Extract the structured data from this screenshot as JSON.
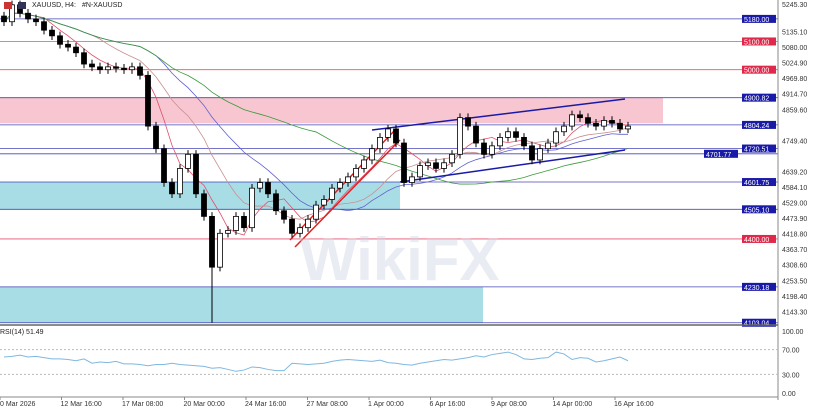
{
  "header": {
    "symbol": "XAUUSD, H4:",
    "description": "#N-XAUUSD"
  },
  "chart_data": {
    "type": "candlestick",
    "symbol": "XAUUSD",
    "timeframe": "H4",
    "ylim": [
      4095,
      5247
    ],
    "price_ticks": [
      "5245.30",
      "5135.10",
      "5080.00",
      "5024.90",
      "4969.80",
      "4914.70",
      "4859.60",
      "4749.40",
      "4639.20",
      "4584.10",
      "4529.00",
      "4473.90",
      "4418.80",
      "4363.70",
      "4308.60",
      "4253.50",
      "4198.40",
      "4143.30"
    ],
    "time_ticks": [
      "0 Mar 2026",
      "12 Mar 16:00",
      "17 Mar 08:00",
      "20 Mar 00:00",
      "24 Mar 16:00",
      "27 Mar 08:00",
      "1 Apr 00:00",
      "6 Apr 16:00",
      "9 Apr 08:00",
      "14 Apr 00:00",
      "16 Apr 16:00"
    ],
    "closes": [
      5170,
      5230,
      5200,
      5180,
      5170,
      5140,
      5120,
      5090,
      5080,
      5060,
      5020,
      5010,
      5000,
      5010,
      5005,
      5000,
      5010,
      4980,
      4800,
      4720,
      4600,
      4560,
      4650,
      4700,
      4560,
      4480,
      4300,
      4420,
      4430,
      4480,
      4440,
      4580,
      4600,
      4560,
      4500,
      4470,
      4420,
      4440,
      4470,
      4520,
      4540,
      4580,
      4600,
      4620,
      4650,
      4680,
      4720,
      4760,
      4790,
      4740,
      4600,
      4620,
      4660,
      4670,
      4650,
      4670,
      4700,
      4830,
      4800,
      4740,
      4700,
      4730,
      4760,
      4780,
      4760,
      4730,
      4680,
      4720,
      4740,
      4780,
      4800,
      4840,
      4830,
      4810,
      4800,
      4820,
      4810,
      4790,
      4800
    ],
    "lowest_low": 4103.04,
    "levels": [
      {
        "price": 5180.0,
        "label": "5180.00",
        "color": "#1a1aa8"
      },
      {
        "price": 5100.0,
        "label": "5100.00",
        "color": "#e0284a"
      },
      {
        "price": 5000.0,
        "label": "5000.00",
        "color": "#e0284a"
      },
      {
        "price": 4900.82,
        "label": "4900.82",
        "color": "#1a1aa8"
      },
      {
        "price": 4804.24,
        "label": "4804.24",
        "color": "#1a1aa8"
      },
      {
        "price": 4720.51,
        "label": "4720.51",
        "color": "#1a1aa8"
      },
      {
        "price": 4701.77,
        "label": "4701.77",
        "color": "#1a1aa8"
      },
      {
        "price": 4601.75,
        "label": "4601.75",
        "color": "#1a1aa8"
      },
      {
        "price": 4505.1,
        "label": "4505.10",
        "color": "#1a1aa8"
      },
      {
        "price": 4400.0,
        "label": "4400.00",
        "color": "#e0284a"
      },
      {
        "price": 4230.18,
        "label": "4230.18",
        "color": "#1a1aa8"
      },
      {
        "price": 4103.04,
        "label": "4103.04",
        "color": "#1a1aa8"
      }
    ],
    "zones": [
      {
        "top": 4900.82,
        "bottom": 4810,
        "color": "#f7c6d0"
      },
      {
        "top": 4601.75,
        "bottom": 4505.1,
        "color": "#a9dde6"
      },
      {
        "top": 4230.18,
        "bottom": 4103.04,
        "color": "#a9dde6"
      }
    ],
    "rsi": {
      "label": "RSI(14) 51.49",
      "ticks": [
        "100.00",
        "70.00",
        "30.00",
        "0.00"
      ],
      "levels": [
        70,
        30
      ],
      "color": "#7fb8e0",
      "values": [
        58,
        59,
        61,
        58,
        59,
        57,
        55,
        55,
        54,
        52,
        55,
        48,
        50,
        49,
        51,
        47,
        47,
        46,
        44,
        46,
        46,
        48,
        46,
        45,
        44,
        43,
        40,
        41,
        38,
        35,
        37,
        42,
        41,
        38,
        36,
        36,
        48,
        47,
        46,
        47,
        48,
        51,
        53,
        54,
        53,
        52,
        51,
        53,
        49,
        48,
        46,
        45,
        48,
        50,
        52,
        54,
        53,
        55,
        57,
        60,
        58,
        62,
        64,
        66,
        62,
        55,
        54,
        56,
        57,
        66,
        63,
        54,
        57,
        56,
        50,
        52,
        55,
        58,
        52
      ]
    }
  },
  "watermark": "WikiFX"
}
